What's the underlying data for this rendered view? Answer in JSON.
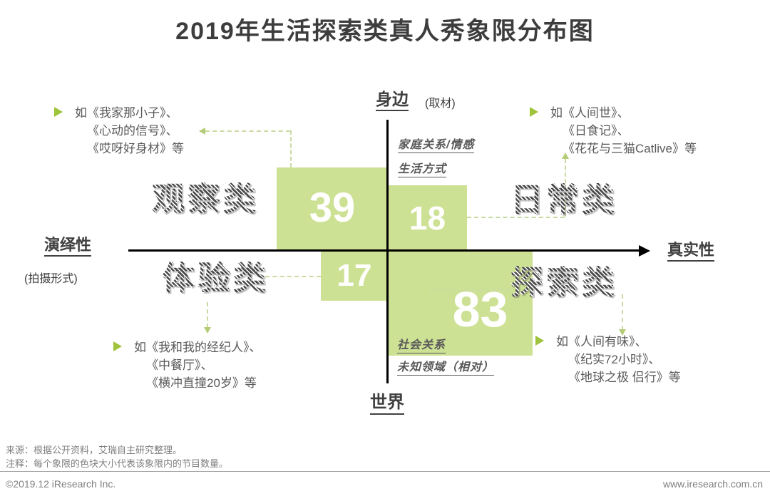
{
  "title": "2019年生活探索类真人秀象限分布图",
  "colors": {
    "block_green": "#cde194",
    "connector_green": "#c9dba0",
    "bullet_green": "#9fc43b",
    "hatch_text_gray": "#4a4a4a",
    "annotation_gray": "#595959",
    "axis_black": "#000000",
    "footer_gray": "#7f7f7f"
  },
  "axes": {
    "top_label": "身边",
    "top_note": "(取材)",
    "bottom_label": "世界",
    "left_label": "演绎性",
    "left_note": "(拍摄形式)",
    "right_label": "真实性"
  },
  "notes": {
    "top_1": "家庭关系/情感",
    "top_2": "生活方式",
    "bottom_1": "社会关系",
    "bottom_2": "未知领域（相对）"
  },
  "quadrants": {
    "tl": {
      "label": "观察类",
      "value": "39",
      "ann": [
        "如《我家那小子》、",
        "《心动的信号》、",
        "《哎呀好身材》等"
      ]
    },
    "tr": {
      "label": "日常类",
      "value": "18",
      "ann": [
        "如《人间世》、",
        "《日食记》、",
        "《花花与三猫Catlive》等"
      ]
    },
    "bl": {
      "label": "体验类",
      "value": "17",
      "ann": [
        "如《我和我的经纪人》、",
        "《中餐厅》、",
        "《横冲直撞20岁》等"
      ]
    },
    "br": {
      "label": "探索类",
      "value": "83",
      "ann": [
        "如《人间有味》、",
        "《纪实72小时》、",
        "《地球之极 侣行》等"
      ]
    }
  },
  "chart_data": {
    "type": "quadrant-area",
    "title": "2019年生活探索类真人秀象限分布图",
    "x_axis": {
      "left": "演绎性",
      "right": "真实性",
      "dimension": "拍摄形式"
    },
    "y_axis": {
      "top": "身边",
      "bottom": "世界",
      "dimension": "取材"
    },
    "quadrants": [
      {
        "position": "top-left",
        "category": "观察类",
        "value": 39,
        "themes": [],
        "examples": [
          "我家那小子",
          "心动的信号",
          "哎呀好身材"
        ]
      },
      {
        "position": "top-right",
        "category": "日常类",
        "value": 18,
        "themes": [
          "家庭关系/情感",
          "生活方式"
        ],
        "examples": [
          "人间世",
          "日食记",
          "花花与三猫Catlive"
        ]
      },
      {
        "position": "bottom-left",
        "category": "体验类",
        "value": 17,
        "themes": [],
        "examples": [
          "我和我的经纪人",
          "中餐厅",
          "横冲直撞20岁"
        ]
      },
      {
        "position": "bottom-right",
        "category": "探索类",
        "value": 83,
        "themes": [
          "社会关系",
          "未知领域（相对）"
        ],
        "examples": [
          "人间有味",
          "纪实72小时",
          "地球之极 侣行"
        ]
      }
    ],
    "size_note": "每个象限的色块大小代表该象限内的节目数量"
  },
  "footer": {
    "source": "来源：根据公开资料，艾瑞自主研究整理。",
    "note": "注释：每个象限的色块大小代表该象限内的节目数量。",
    "copyright": "©2019.12 iResearch Inc.",
    "website": "www.iresearch.com.cn"
  }
}
